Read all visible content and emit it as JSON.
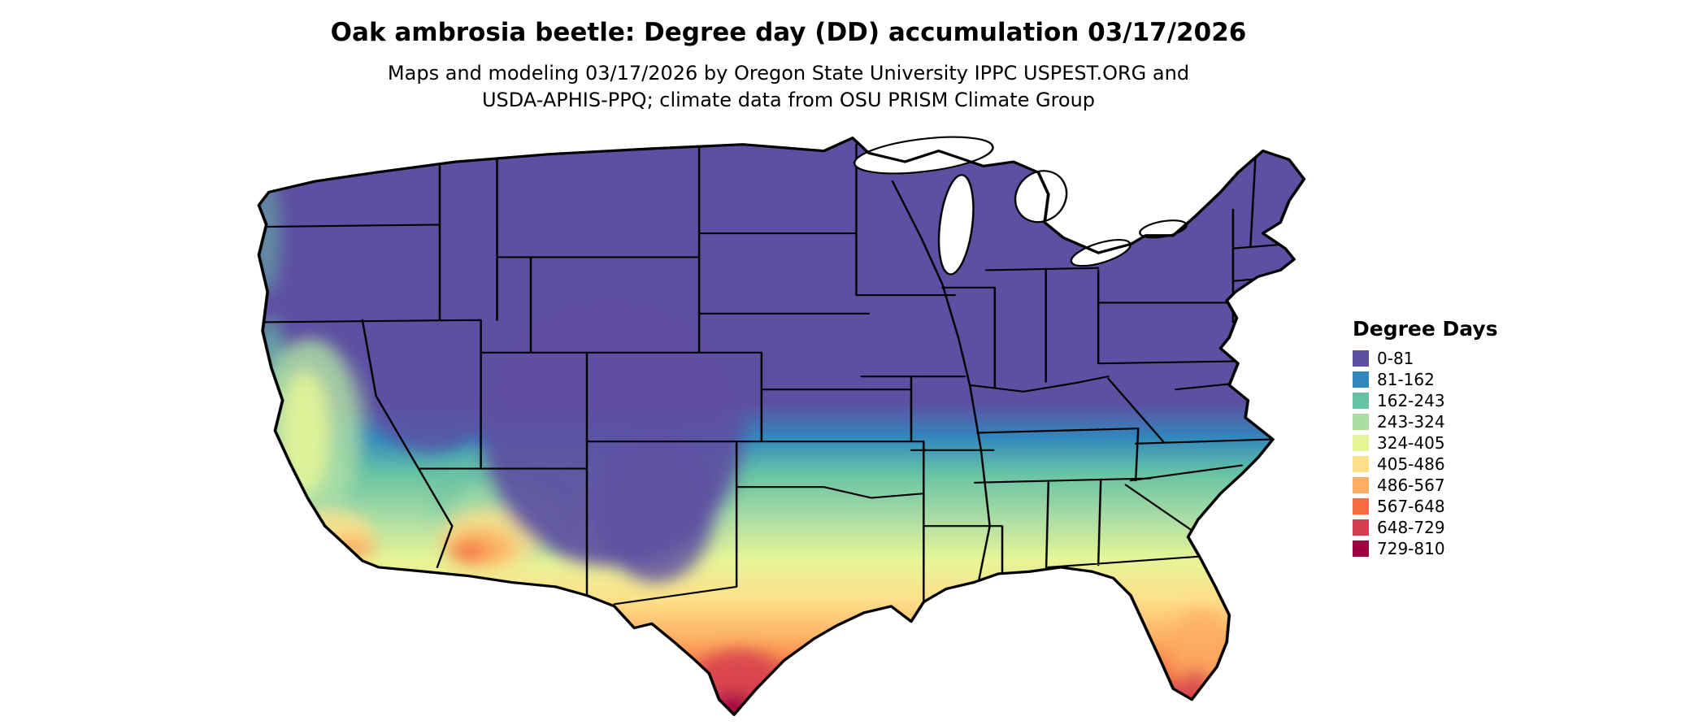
{
  "header": {
    "title": "Oak ambrosia beetle: Degree day (DD) accumulation 03/17/2026",
    "subtitle_line1": "Maps and modeling 03/17/2026 by Oregon State University IPPC USPEST.ORG and",
    "subtitle_line2": "USDA-APHIS-PPQ; climate data from OSU PRISM Climate Group"
  },
  "map": {
    "region": "Contiguous United States",
    "kind": "Degree day accumulation choropleth with state boundaries",
    "boundary_color": "#000000",
    "background_color": "#ffffff"
  },
  "legend": {
    "title": "Degree Days",
    "items": [
      {
        "label": "0-81",
        "color": "#5e4fa2"
      },
      {
        "label": "81-162",
        "color": "#3288bd"
      },
      {
        "label": "162-243",
        "color": "#66c2a5"
      },
      {
        "label": "243-324",
        "color": "#abdda4"
      },
      {
        "label": "324-405",
        "color": "#e6f598"
      },
      {
        "label": "405-486",
        "color": "#fee08b"
      },
      {
        "label": "486-567",
        "color": "#fdae61"
      },
      {
        "label": "567-648",
        "color": "#f46d43"
      },
      {
        "label": "648-729",
        "color": "#d53e4f"
      },
      {
        "label": "729-810",
        "color": "#9e0142"
      }
    ]
  }
}
